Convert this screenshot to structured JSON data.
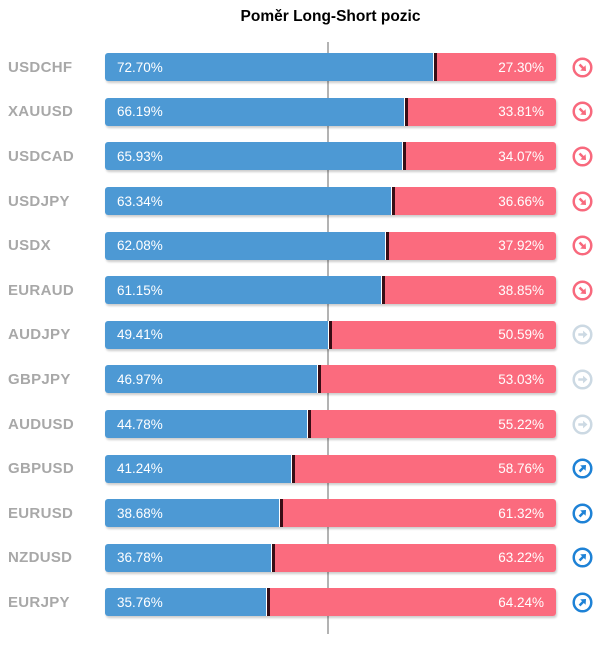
{
  "title": "Poměr Long-Short pozic",
  "colors": {
    "long_bar": "#4d99d4",
    "short_bar": "#fb6b7e",
    "segment_divider": "#380d15",
    "pair_label": "#a8a8a8",
    "center_line": "#b3b3b3",
    "trend_down_icon": "#f8697d",
    "trend_neutral_icon": "#ccd9e3",
    "trend_up_icon": "#1e82d6"
  },
  "chart_data": {
    "type": "bar",
    "orientation": "horizontal-stacked",
    "title": "Poměr Long-Short pozic",
    "categories": [
      "USDCHF",
      "XAUUSD",
      "USDCAD",
      "USDJPY",
      "USDX",
      "EURAUD",
      "AUDJPY",
      "GBPJPY",
      "AUDUSD",
      "GBPUSD",
      "EURUSD",
      "NZDUSD",
      "EURJPY"
    ],
    "series": [
      {
        "name": "Long",
        "color": "#4d99d4",
        "values": [
          72.7,
          66.19,
          65.93,
          63.34,
          62.08,
          61.15,
          49.41,
          46.97,
          44.78,
          41.24,
          38.68,
          36.78,
          35.76
        ]
      },
      {
        "name": "Short",
        "color": "#fb6b7e",
        "values": [
          27.3,
          33.81,
          34.07,
          36.66,
          37.92,
          38.85,
          50.59,
          53.03,
          55.22,
          58.76,
          61.32,
          63.22,
          64.24
        ]
      }
    ],
    "xlim": [
      0,
      100
    ],
    "center_gridline": 50,
    "grid": "single-vertical-center-line",
    "legend_position": "none",
    "value_labels": "inside-segments"
  },
  "rows": [
    {
      "pair": "USDCHF",
      "long": 72.7,
      "short": 27.3,
      "long_label": "72.70%",
      "short_label": "27.30%",
      "trend": "down"
    },
    {
      "pair": "XAUUSD",
      "long": 66.19,
      "short": 33.81,
      "long_label": "66.19%",
      "short_label": "33.81%",
      "trend": "down"
    },
    {
      "pair": "USDCAD",
      "long": 65.93,
      "short": 34.07,
      "long_label": "65.93%",
      "short_label": "34.07%",
      "trend": "down"
    },
    {
      "pair": "USDJPY",
      "long": 63.34,
      "short": 36.66,
      "long_label": "63.34%",
      "short_label": "36.66%",
      "trend": "down"
    },
    {
      "pair": "USDX",
      "long": 62.08,
      "short": 37.92,
      "long_label": "62.08%",
      "short_label": "37.92%",
      "trend": "down"
    },
    {
      "pair": "EURAUD",
      "long": 61.15,
      "short": 38.85,
      "long_label": "61.15%",
      "short_label": "38.85%",
      "trend": "down"
    },
    {
      "pair": "AUDJPY",
      "long": 49.41,
      "short": 50.59,
      "long_label": "49.41%",
      "short_label": "50.59%",
      "trend": "neutral"
    },
    {
      "pair": "GBPJPY",
      "long": 46.97,
      "short": 53.03,
      "long_label": "46.97%",
      "short_label": "53.03%",
      "trend": "neutral"
    },
    {
      "pair": "AUDUSD",
      "long": 44.78,
      "short": 55.22,
      "long_label": "44.78%",
      "short_label": "55.22%",
      "trend": "neutral"
    },
    {
      "pair": "GBPUSD",
      "long": 41.24,
      "short": 58.76,
      "long_label": "41.24%",
      "short_label": "58.76%",
      "trend": "up"
    },
    {
      "pair": "EURUSD",
      "long": 38.68,
      "short": 61.32,
      "long_label": "38.68%",
      "short_label": "61.32%",
      "trend": "up"
    },
    {
      "pair": "NZDUSD",
      "long": 36.78,
      "short": 63.22,
      "long_label": "36.78%",
      "short_label": "63.22%",
      "trend": "up"
    },
    {
      "pair": "EURJPY",
      "long": 35.76,
      "short": 64.24,
      "long_label": "35.76%",
      "short_label": "64.24%",
      "trend": "up"
    }
  ]
}
